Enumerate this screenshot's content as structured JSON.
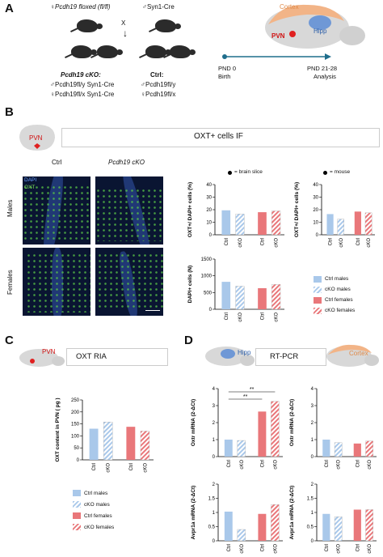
{
  "panel_a": {
    "letter": "A",
    "female_floxed": "♀Pcdh19 floxed (fl/fl)",
    "male_cre": "♂Syn1-Cre",
    "cross_symbol": "X",
    "cko_title": "Pcdh19 cKO:",
    "cko_line1": "♂Pcdh19fl/y Syn1-Cre",
    "cko_line2": "♀Pcdh19fl/x Syn1-Cre",
    "ctrl_title": "Ctrl:",
    "ctrl_line1": "♂Pcdh19fl/y",
    "ctrl_line2": "♀Pcdh19fl/x",
    "timeline_start": "PND 0",
    "timeline_start_sub": "Birth",
    "timeline_end": "PND 21-28",
    "timeline_end_sub": "Analysis",
    "brain_cortex": "Cortex",
    "brain_hipp": "Hipp",
    "brain_pvn": "PVN"
  },
  "panel_b": {
    "letter": "B",
    "pvn_label": "PVN",
    "header": "OXT+ cells IF",
    "col_ctrl": "Ctrl",
    "col_cko": "Pcdh19 cKO",
    "row_males": "Males",
    "row_females": "Females",
    "stain_dapi": "DAPI",
    "stain_oxt": "OXT",
    "legend_brain_slice": "= brain slice",
    "legend_mouse": "= mouse"
  },
  "panel_c": {
    "letter": "C",
    "pvn_label": "PVN",
    "header": "OXT RIA"
  },
  "panel_d": {
    "letter": "D",
    "hipp_label": "Hipp",
    "header": "RT-PCR",
    "cortex_label": "Cortex"
  },
  "legend": {
    "ctrl_males": "Ctrl males",
    "cko_males": "cKO males",
    "ctrl_females": "Ctrl females",
    "cko_females": "cKO females"
  },
  "colors": {
    "blue": "#a9c8ea",
    "red": "#e9777a",
    "brain_orange": "#f2b487",
    "hipp_blue": "#6f98d6"
  },
  "chart_data": [
    {
      "type": "bar",
      "ylabel": "OXT+/ DAPI+ cells (%)",
      "ylim": [
        0,
        40
      ],
      "yticks": [
        0,
        10,
        20,
        30,
        40
      ],
      "categories": [
        "Ctrl",
        "cKO",
        "Ctrl",
        "cKO"
      ],
      "series": [
        {
          "values": [
            19.5,
            16.5,
            18.0,
            19.0
          ]
        }
      ]
    },
    {
      "type": "bar",
      "ylabel": "OXT+/ DAPI+ cells (%)",
      "ylim": [
        0,
        40
      ],
      "yticks": [
        0,
        10,
        20,
        30,
        40
      ],
      "categories": [
        "Ctrl",
        "cKO",
        "Ctrl",
        "cKO"
      ],
      "series": [
        {
          "values": [
            16.5,
            12.5,
            18.5,
            17.5
          ]
        }
      ]
    },
    {
      "type": "bar",
      "ylabel": "DAPI+ cells (N)",
      "ylim": [
        0,
        1500
      ],
      "yticks": [
        0,
        500,
        1000,
        1500
      ],
      "categories": [
        "Ctrl",
        "cKO",
        "Ctrl",
        "cKO"
      ],
      "series": [
        {
          "values": [
            820,
            690,
            630,
            740
          ]
        }
      ]
    },
    {
      "type": "bar",
      "ylabel": "OXT content in PVN ( pg )",
      "ylim": [
        0,
        250
      ],
      "yticks": [
        0,
        50,
        100,
        150,
        200,
        250
      ],
      "categories": [
        "Ctrl",
        "cKO",
        "Ctrl",
        "cKO"
      ],
      "series": [
        {
          "values": [
            130,
            158,
            138,
            120
          ]
        }
      ]
    },
    {
      "type": "bar",
      "ylabel": "Oxtr mRNA (2-ΔCt)",
      "ylim": [
        0,
        4
      ],
      "yticks": [
        0,
        1,
        2,
        3,
        4
      ],
      "categories": [
        "Ctrl",
        "cKO",
        "Ctrl",
        "cKO"
      ],
      "annotations": [
        "**",
        "**"
      ],
      "series": [
        {
          "values": [
            1.0,
            0.95,
            2.65,
            3.25
          ]
        }
      ]
    },
    {
      "type": "bar",
      "ylabel": "Oxtr mRNA (2-ΔCt)",
      "ylim": [
        0,
        4
      ],
      "yticks": [
        0,
        1,
        2,
        3,
        4
      ],
      "categories": [
        "Ctrl",
        "cKO",
        "Ctrl",
        "cKO"
      ],
      "series": [
        {
          "values": [
            1.0,
            0.82,
            0.77,
            0.92
          ]
        }
      ]
    },
    {
      "type": "bar",
      "ylabel": "Avpr1a mRNA (2-ΔCt)",
      "ylim": [
        0,
        2.0
      ],
      "yticks": [
        0,
        0.5,
        1.0,
        1.5,
        2.0
      ],
      "categories": [
        "Ctrl",
        "cKO",
        "Ctrl",
        "cKO"
      ],
      "series": [
        {
          "values": [
            1.03,
            0.4,
            0.95,
            1.28
          ]
        }
      ]
    },
    {
      "type": "bar",
      "ylabel": "Avpr1a mRNA (2-ΔCt)",
      "ylim": [
        0,
        2.0
      ],
      "yticks": [
        0,
        0.5,
        1.0,
        1.5,
        2.0
      ],
      "categories": [
        "Ctrl",
        "cKO",
        "Ctrl",
        "cKO"
      ],
      "series": [
        {
          "values": [
            0.95,
            0.85,
            1.1,
            1.1
          ]
        }
      ]
    }
  ]
}
